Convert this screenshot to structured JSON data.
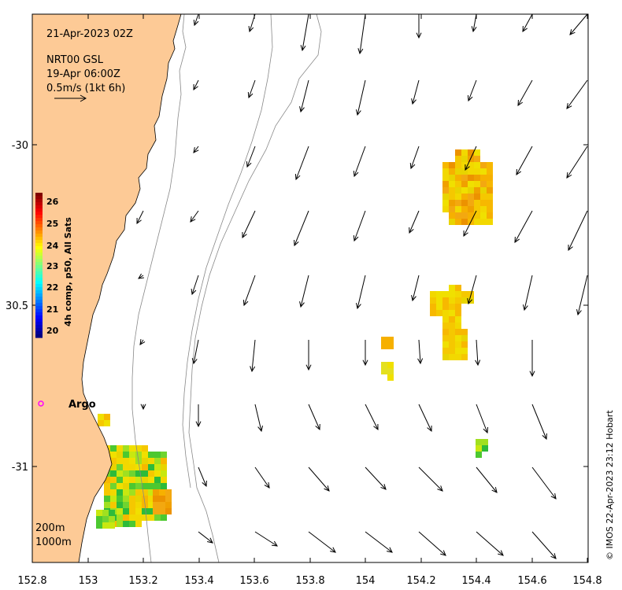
{
  "map": {
    "date": "21-Apr-2023 02Z",
    "dataset": "NRT00 GSL",
    "dataset_time": "19-Apr 06:00Z",
    "vector_scale": "0.5m/s (1kt 6h)",
    "float_label": "Argo",
    "isobaths": [
      "200m",
      "1000m"
    ],
    "credit": "© IMOS 22-Apr-2023 23:12 Hobart",
    "x_ticks": [
      "152.8",
      "153",
      "153.2",
      "153.4",
      "153.6",
      "153.8",
      "154",
      "154.2",
      "154.4",
      "154.6",
      "154.8"
    ],
    "y_ticks": [
      "-30",
      "30.5",
      "-31"
    ],
    "land_color": "#fdca96",
    "float_color": "#ff00ff"
  },
  "colorbar": {
    "label": "4h comp, p50, All Sats",
    "ticks": [
      "26",
      "25",
      "24",
      "23",
      "22",
      "21",
      "20"
    ],
    "range": [
      20,
      26.5
    ]
  }
}
